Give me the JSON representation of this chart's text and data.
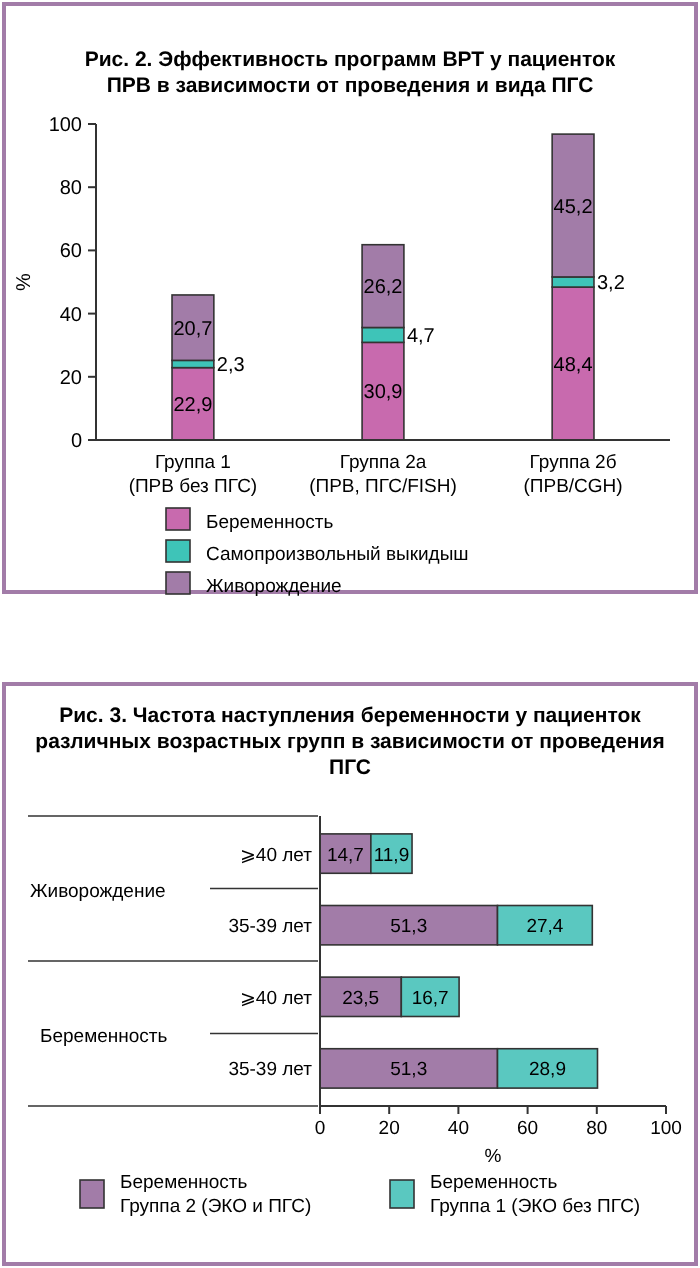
{
  "chart_data": [
    {
      "type": "bar",
      "title": "Рис. 2. Эффективность программ ВРТ у пациенток ПРВ в зависимости от проведения и вида ПГС",
      "ylabel": "%",
      "categories": [
        "Группа 1 (ПРВ без ПГС)",
        "Группа 2а (ПРВ, ПГС/FISH)",
        "Группа 2б (ПРВ/CGH)"
      ],
      "stacked": true,
      "ylim": [
        0,
        100
      ],
      "yticks": [
        0,
        20,
        40,
        60,
        80,
        100
      ],
      "legend": "bottom",
      "series": [
        {
          "name": "Беременность",
          "color": "#c86aae",
          "values": [
            22.9,
            30.9,
            48.4
          ],
          "value_labels": [
            "22,9",
            "30,9",
            "48,4"
          ]
        },
        {
          "name": "Самопроизвольный выкидыш",
          "color": "#3ec4b8",
          "values": [
            2.3,
            4.7,
            3.2
          ],
          "value_labels": [
            "2,3",
            "4,7",
            "3,2"
          ]
        },
        {
          "name": "Живорождение",
          "color": "#a27ca8",
          "values": [
            20.7,
            26.2,
            45.2
          ],
          "value_labels": [
            "20,7",
            "26,2",
            "45,2"
          ]
        }
      ]
    },
    {
      "type": "bar",
      "orientation": "horizontal",
      "title": "Рис. 3. Частота наступления беременности у пациенток различных возрастных групп в зависимости от проведения ПГС",
      "xlabel": "%",
      "categories": [
        "⩾40 лет",
        "35-39 лет",
        "⩾40 лет",
        "35-39 лет"
      ],
      "annotations": [
        "Живорождение",
        "Беременность"
      ],
      "stacked": true,
      "xlim": [
        0,
        100
      ],
      "xticks": [
        0,
        20,
        40,
        60,
        80,
        100
      ],
      "legend": "bottom",
      "series": [
        {
          "name": "Беременность Группа 2 (ЭКО и ПГС)",
          "color": "#a27ca8",
          "values": [
            14.7,
            51.3,
            23.5,
            51.3
          ],
          "value_labels": [
            "14,7",
            "51,3",
            "23,5",
            "51,3"
          ]
        },
        {
          "name": "Беременность Группа 1 (ЭКО без ПГС)",
          "color": "#5ac8c0",
          "values": [
            11.9,
            27.4,
            16.7,
            28.9
          ],
          "value_labels": [
            "11,9",
            "27,4",
            "16,7",
            "28,9"
          ]
        }
      ]
    }
  ]
}
